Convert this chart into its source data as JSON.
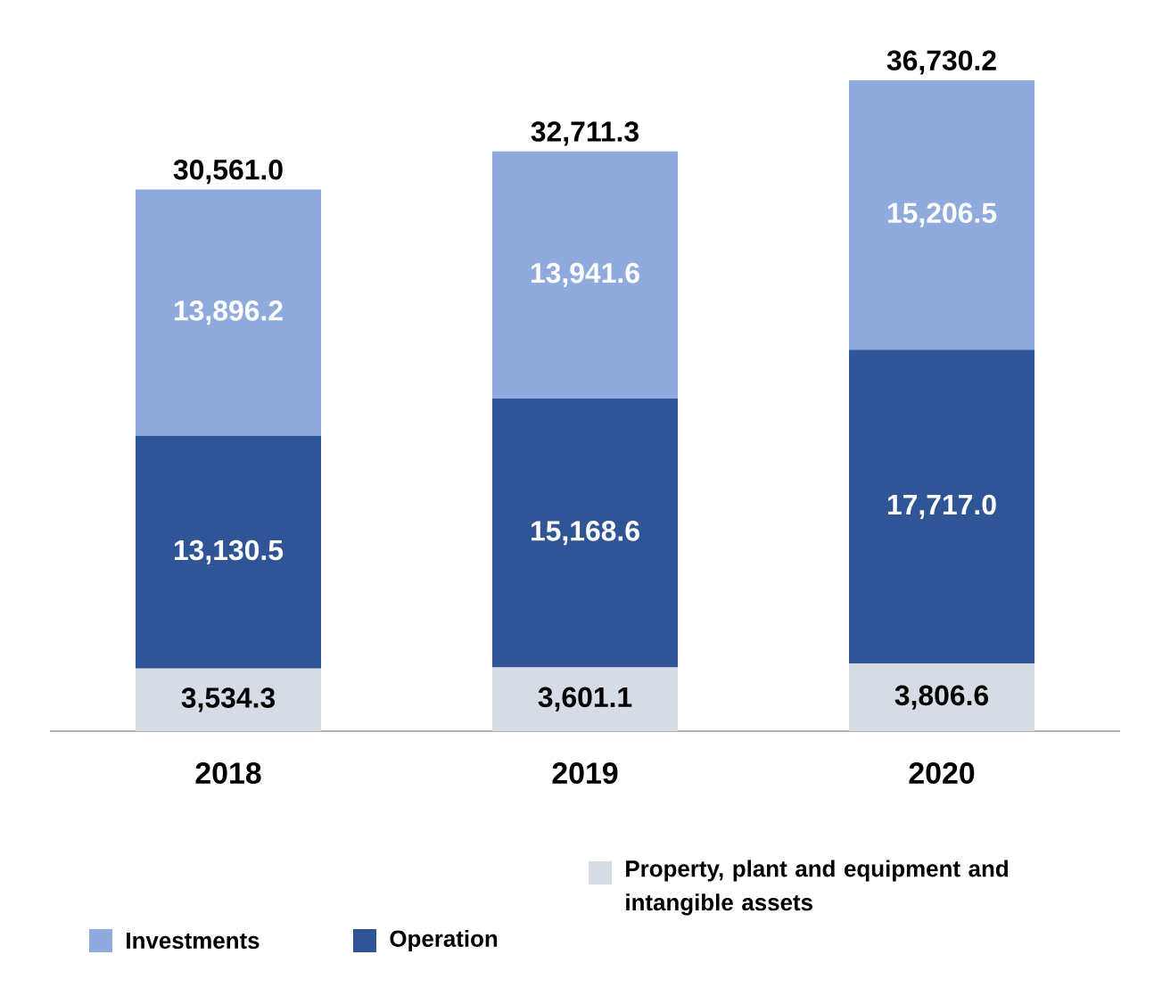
{
  "chart_data": {
    "type": "bar",
    "stacked": true,
    "categories": [
      "2018",
      "2019",
      "2020"
    ],
    "series": [
      {
        "name": "Property, plant and equipment and intangible assets",
        "color": "#d6dce5",
        "values": [
          3534.3,
          3601.1,
          3806.6
        ],
        "value_labels": [
          "3,534.3",
          "3,601.1",
          "3,806.6"
        ]
      },
      {
        "name": "Operation",
        "color": "#2f5597",
        "values": [
          13130.5,
          15168.6,
          17717.0
        ],
        "value_labels": [
          "13,130.5",
          "15,168.6",
          "17,717.0"
        ]
      },
      {
        "name": "Investments",
        "color": "#8faadc",
        "values": [
          13896.2,
          13941.6,
          15206.5
        ],
        "value_labels": [
          "13,896.2",
          "13,941.6",
          "15,206.5"
        ]
      }
    ],
    "totals": [
      "30,561.0",
      "32,711.3",
      "36,730.2"
    ],
    "legend": "bottom"
  }
}
